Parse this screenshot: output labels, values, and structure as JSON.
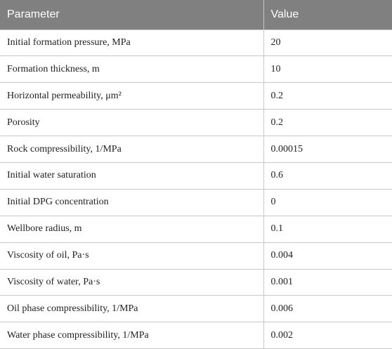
{
  "table": {
    "header": [
      "Parameter",
      "Value"
    ],
    "rows": [
      [
        "Initial formation pressure, MPa",
        "20"
      ],
      [
        "Formation thickness, m",
        "10"
      ],
      [
        "Horizontal permeability, μm²",
        "0.2"
      ],
      [
        "Porosity",
        "0.2"
      ],
      [
        "Rock compressibility, 1/MPa",
        "0.00015"
      ],
      [
        "Initial water saturation",
        "0.6"
      ],
      [
        "Initial DPG concentration",
        "0"
      ],
      [
        "Wellbore radius, m",
        "0.1"
      ],
      [
        "Viscosity of oil, Pa·s",
        "0.004"
      ],
      [
        "Viscosity of water, Pa·s",
        "0.001"
      ],
      [
        "Oil phase compressibility, 1/MPa",
        "0.006"
      ],
      [
        "Water phase compressibility, 1/MPa",
        "0.002"
      ]
    ]
  }
}
